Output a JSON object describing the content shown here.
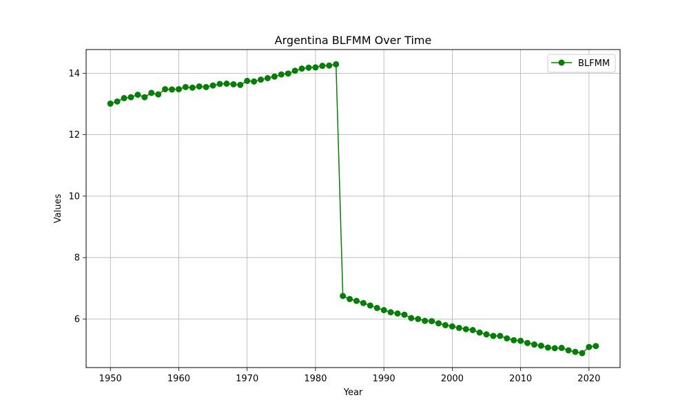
{
  "chart_data": {
    "type": "line",
    "title": "Argentina BLFMM Over Time",
    "xlabel": "Year",
    "ylabel": "Values",
    "xlim": [
      1946.45,
      2024.55
    ],
    "ylim": [
      4.42,
      14.77
    ],
    "x_ticks": [
      1950,
      1960,
      1970,
      1980,
      1990,
      2000,
      2010,
      2020
    ],
    "y_ticks": [
      6,
      8,
      10,
      12,
      14
    ],
    "grid": true,
    "legend_position": "top-right",
    "series": [
      {
        "name": "BLFMM",
        "color": "#008000",
        "marker": "circle",
        "x": [
          1950,
          1951,
          1952,
          1953,
          1954,
          1955,
          1956,
          1957,
          1958,
          1959,
          1960,
          1961,
          1962,
          1963,
          1964,
          1965,
          1966,
          1967,
          1968,
          1969,
          1970,
          1971,
          1972,
          1973,
          1974,
          1975,
          1976,
          1977,
          1978,
          1979,
          1980,
          1981,
          1982,
          1983,
          1984,
          1985,
          1986,
          1987,
          1988,
          1989,
          1990,
          1991,
          1992,
          1993,
          1994,
          1995,
          1996,
          1997,
          1998,
          1999,
          2000,
          2001,
          2002,
          2003,
          2004,
          2005,
          2006,
          2007,
          2008,
          2009,
          2010,
          2011,
          2012,
          2013,
          2014,
          2015,
          2016,
          2017,
          2018,
          2019,
          2020,
          2021
        ],
        "values": [
          13.01,
          13.08,
          13.19,
          13.22,
          13.3,
          13.22,
          13.36,
          13.31,
          13.48,
          13.47,
          13.48,
          13.55,
          13.53,
          13.57,
          13.55,
          13.6,
          13.65,
          13.66,
          13.64,
          13.62,
          13.75,
          13.73,
          13.79,
          13.84,
          13.89,
          13.96,
          13.99,
          14.08,
          14.15,
          14.18,
          14.19,
          14.24,
          14.25,
          14.29,
          6.75,
          6.65,
          6.59,
          6.52,
          6.44,
          6.36,
          6.29,
          6.22,
          6.18,
          6.14,
          6.03,
          6.0,
          5.94,
          5.93,
          5.86,
          5.8,
          5.76,
          5.71,
          5.67,
          5.64,
          5.56,
          5.5,
          5.45,
          5.45,
          5.37,
          5.31,
          5.29,
          5.22,
          5.17,
          5.13,
          5.07,
          5.05,
          5.06,
          4.98,
          4.93,
          4.89,
          5.09,
          5.12
        ]
      }
    ]
  }
}
